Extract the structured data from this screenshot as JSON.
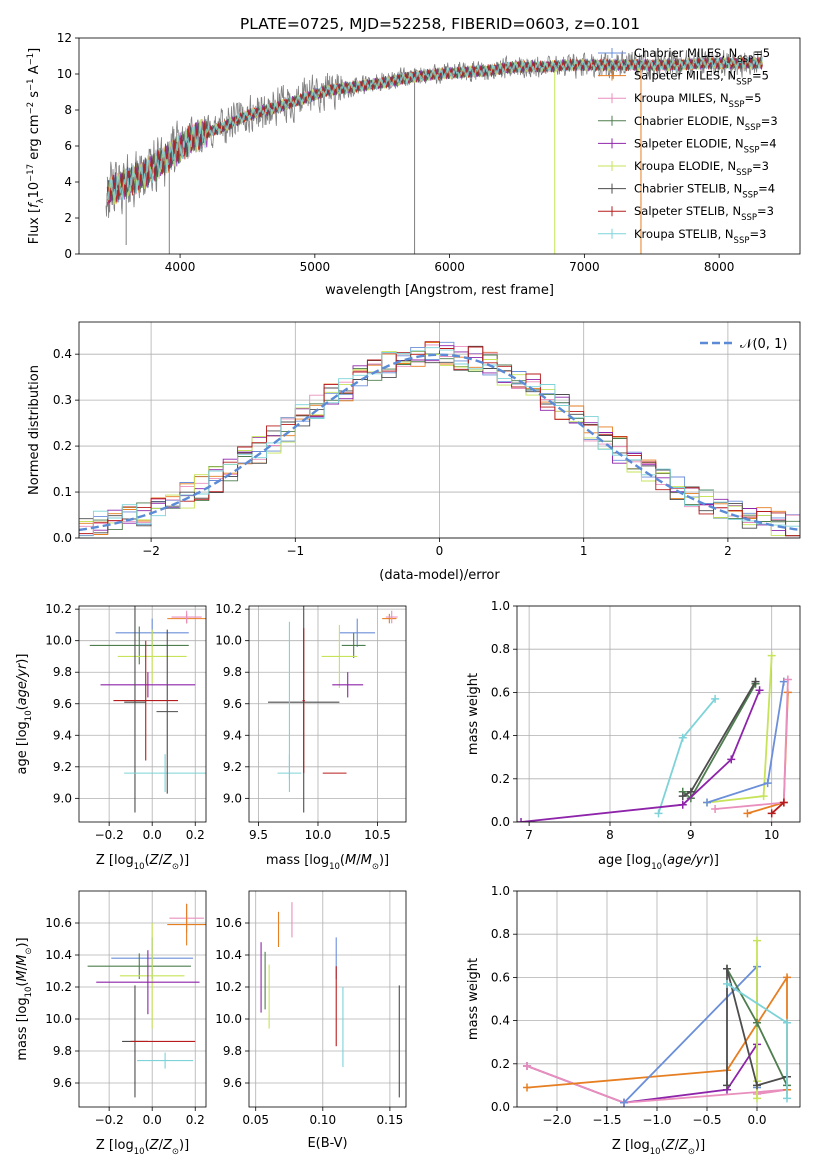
{
  "figure": {
    "title": "PLATE=0725, MJD=52258, FIBERID=0603, z=0.101"
  },
  "colors": {
    "Chabrier MILES": "#6b8fd9",
    "Salpeter MILES": "#e67e22",
    "Kroupa MILES": "#e98fbd",
    "Chabrier ELODIE": "#4e7d4e",
    "Salpeter ELODIE": "#8e24aa",
    "Kroupa ELODIE": "#c6e35a",
    "Chabrier STELIB": "#4d4d4d",
    "Salpeter STELIB": "#b71c1c",
    "Kroupa STELIB": "#7dd3d8",
    "data": "#808080",
    "gaussian": "#5b8bd6",
    "grid": "#b0b0b0"
  },
  "chart_data": [
    {
      "type": "line",
      "id": "spectrum",
      "xlabel": "wavelength [Angstrom, rest frame]",
      "ylabel": "Flux [f_λ 10^-17 erg cm^-2 s^-1 A^-1]",
      "xlim": [
        3250,
        8600
      ],
      "ylim": [
        0,
        12
      ],
      "xticks": [
        4000,
        5000,
        6000,
        7000,
        8000
      ],
      "yticks": [
        0,
        2,
        4,
        6,
        8,
        10,
        12
      ],
      "grid": false,
      "legend_position": "right",
      "legend": [
        "Chabrier MILES, N_SSP=5",
        "Salpeter MILES, N_SSP=5",
        "Kroupa MILES, N_SSP=5",
        "Chabrier ELODIE, N_SSP=3",
        "Salpeter ELODIE, N_SSP=4",
        "Kroupa ELODIE, N_SSP=3",
        "Chabrier STELIB, N_SSP=4",
        "Salpeter STELIB, N_SSP=3",
        "Kroupa STELIB, N_SSP=3"
      ],
      "continuum": {
        "x": [
          3450,
          3700,
          3900,
          4100,
          4300,
          4500,
          4700,
          4900,
          5100,
          5300,
          5500,
          5700,
          5900,
          6100,
          6300,
          6500,
          6700,
          6900,
          7100,
          7300,
          7500,
          7700,
          7900,
          8100,
          8300
        ],
        "y": [
          3.4,
          4.3,
          5.3,
          6.5,
          7.0,
          7.7,
          8.1,
          8.6,
          9.1,
          9.3,
          9.5,
          9.8,
          10.0,
          10.1,
          10.2,
          10.4,
          10.4,
          10.5,
          10.5,
          10.5,
          10.5,
          10.5,
          10.6,
          10.6,
          10.6
        ]
      }
    },
    {
      "type": "histogram",
      "id": "residuals",
      "xlabel": "(data-model)/error",
      "ylabel": "Normed distribution",
      "xlim": [
        -2.5,
        2.5
      ],
      "ylim": [
        0,
        0.47
      ],
      "xticks": [
        -2,
        -1,
        0,
        1,
        2
      ],
      "yticks": [
        0.0,
        0.1,
        0.2,
        0.3,
        0.4
      ],
      "grid": true,
      "legend_position": "top-right",
      "legend": [
        "N(0,1)"
      ],
      "bin_width": 0.1
    },
    {
      "type": "scatter",
      "id": "age_vs_Z",
      "xlabel": "Z [log10(Z/Z_sun)]",
      "ylabel": "age [log10(age/yr)]",
      "xlim": [
        -0.34,
        0.25
      ],
      "ylim": [
        8.85,
        10.22
      ],
      "xticks": [
        -0.2,
        0.0,
        0.2
      ],
      "yticks": [
        9.0,
        9.2,
        9.4,
        9.6,
        9.8,
        10.0,
        10.2
      ],
      "grid": true,
      "points": [
        {
          "model": "Salpeter MILES",
          "x": 0.16,
          "y": 10.14,
          "xerr": 0.09,
          "yerr": 0.03
        },
        {
          "model": "Kroupa MILES",
          "x": 0.16,
          "y": 10.15,
          "xerr": 0.07,
          "yerr": 0.04
        },
        {
          "model": "Chabrier MILES",
          "x": 0.0,
          "y": 10.05,
          "xerr": 0.17,
          "yerr": 0.09
        },
        {
          "model": "Chabrier ELODIE",
          "x": -0.06,
          "y": 9.97,
          "xerr": 0.23,
          "yerr": 0.12
        },
        {
          "model": "Kroupa ELODIE",
          "x": 0.0,
          "y": 9.9,
          "xerr": 0.16,
          "yerr": 0.17
        },
        {
          "model": "Salpeter ELODIE",
          "x": -0.02,
          "y": 9.72,
          "xerr": 0.22,
          "yerr": 0.08
        },
        {
          "model": "Chabrier STELIB",
          "x": -0.08,
          "y": 9.61,
          "xerr": 0.05,
          "yerr": 0.7
        },
        {
          "model": "Salpeter STELIB",
          "x": -0.03,
          "y": 9.62,
          "xerr": 0.15,
          "yerr": 0.38
        },
        {
          "model": "Kroupa STELIB",
          "x": 0.06,
          "y": 9.16,
          "xerr": 0.19,
          "yerr": 0.12
        },
        {
          "model": "Chabrier STELIB",
          "x": 0.07,
          "y": 9.55,
          "xerr": 0.05,
          "yerr": 0.52
        }
      ]
    },
    {
      "type": "scatter",
      "id": "age_vs_mass",
      "xlabel": "mass [log10(M/M_sun)]",
      "ylabel": "",
      "xlim": [
        9.42,
        10.74
      ],
      "ylim": [
        8.85,
        10.22
      ],
      "xticks": [
        9.5,
        10.0,
        10.5
      ],
      "yticks": [
        9.0,
        9.2,
        9.4,
        9.6,
        9.8,
        10.0,
        10.2
      ],
      "grid": true,
      "points": [
        {
          "model": "Salpeter MILES",
          "x": 10.6,
          "y": 10.14,
          "xerr": 0.06,
          "yerr": 0.03
        },
        {
          "model": "Kroupa MILES",
          "x": 10.62,
          "y": 10.15,
          "xerr": 0.05,
          "yerr": 0.04
        },
        {
          "model": "Chabrier MILES",
          "x": 10.33,
          "y": 10.05,
          "xerr": 0.15,
          "yerr": 0.09
        },
        {
          "model": "Chabrier ELODIE",
          "x": 10.3,
          "y": 9.97,
          "xerr": 0.1,
          "yerr": 0.08
        },
        {
          "model": "Kroupa ELODIE",
          "x": 10.18,
          "y": 9.9,
          "xerr": 0.15,
          "yerr": 0.2
        },
        {
          "model": "Salpeter ELODIE",
          "x": 10.25,
          "y": 9.72,
          "xerr": 0.13,
          "yerr": 0.08
        },
        {
          "model": "Chabrier STELIB",
          "x": 9.88,
          "y": 9.61,
          "xerr": 0.3,
          "yerr": 0.7
        },
        {
          "model": "Salpeter STELIB",
          "x": 9.88,
          "y": 9.62,
          "xerr": 0.01,
          "yerr": 0.46
        },
        {
          "model": "Kroupa STELIB",
          "x": 9.76,
          "y": 9.16,
          "xerr": 0.1,
          "yerr": 0.12
        },
        {
          "model": "Salpeter STELIB",
          "x": 10.14,
          "y": 9.16,
          "xerr": 0.1,
          "yerr": 0.0
        },
        {
          "model": "Kroupa STELIB",
          "x": 9.76,
          "y": 9.62,
          "xerr": 0.0,
          "yerr": 0.5
        }
      ]
    },
    {
      "type": "line",
      "id": "mass_weight_vs_age",
      "xlabel": "age [log10(age/yr)]",
      "ylabel": "mass weight",
      "xlim": [
        6.85,
        10.35
      ],
      "ylim": [
        0,
        1
      ],
      "xticks": [
        7,
        8,
        9,
        10
      ],
      "yticks": [
        0.0,
        0.2,
        0.4,
        0.6,
        0.8,
        1.0
      ],
      "grid": true,
      "series": [
        {
          "model": "Kroupa STELIB",
          "x": [
            8.6,
            8.9,
            9.3
          ],
          "y": [
            0.04,
            0.39,
            0.57
          ]
        },
        {
          "model": "Chabrier ELODIE",
          "x": [
            8.9,
            9.0,
            9.8
          ],
          "y": [
            0.14,
            0.11,
            0.64
          ]
        },
        {
          "model": "Chabrier STELIB",
          "x": [
            8.9,
            9.0,
            9.8
          ],
          "y": [
            0.12,
            0.14,
            0.65
          ]
        },
        {
          "model": "Salpeter ELODIE",
          "x": [
            6.9,
            8.9,
            9.5,
            9.85
          ],
          "y": [
            0.0,
            0.08,
            0.29,
            0.61
          ]
        },
        {
          "model": "Kroupa ELODIE",
          "x": [
            9.2,
            9.9,
            10.0
          ],
          "y": [
            0.09,
            0.12,
            0.77
          ]
        },
        {
          "model": "Chabrier MILES",
          "x": [
            9.2,
            9.95,
            10.15
          ],
          "y": [
            0.09,
            0.18,
            0.65
          ]
        },
        {
          "model": "Salpeter MILES",
          "x": [
            9.7,
            10.15,
            10.2
          ],
          "y": [
            0.04,
            0.09,
            0.6
          ]
        },
        {
          "model": "Kroupa MILES",
          "x": [
            9.3,
            10.15,
            10.2
          ],
          "y": [
            0.06,
            0.09,
            0.66
          ]
        },
        {
          "model": "Salpeter STELIB",
          "x": [
            10.0,
            10.15
          ],
          "y": [
            0.04,
            0.09
          ]
        }
      ]
    },
    {
      "type": "scatter",
      "id": "mass_vs_Z",
      "xlabel": "Z [log10(Z/Z_sun)]",
      "ylabel": "mass [log10(M/M_sun)]",
      "xlim": [
        -0.34,
        0.25
      ],
      "ylim": [
        9.45,
        10.8
      ],
      "xticks": [
        -0.2,
        0.0,
        0.2
      ],
      "yticks": [
        9.6,
        9.8,
        10.0,
        10.2,
        10.4,
        10.6
      ],
      "grid": true,
      "points": [
        {
          "model": "Kroupa MILES",
          "x": 0.16,
          "y": 10.63,
          "xerr": 0.08,
          "yerr": 0.09
        },
        {
          "model": "Salpeter MILES",
          "x": 0.16,
          "y": 10.59,
          "xerr": 0.09,
          "yerr": 0.13
        },
        {
          "model": "Chabrier MILES",
          "x": 0.0,
          "y": 10.38,
          "xerr": 0.19,
          "yerr": 0.13
        },
        {
          "model": "Chabrier ELODIE",
          "x": -0.06,
          "y": 10.33,
          "xerr": 0.24,
          "yerr": 0.08
        },
        {
          "model": "Kroupa ELODIE",
          "x": 0.0,
          "y": 10.27,
          "xerr": 0.15,
          "yerr": 0.33
        },
        {
          "model": "Salpeter ELODIE",
          "x": -0.02,
          "y": 10.23,
          "xerr": 0.24,
          "yerr": 0.2
        },
        {
          "model": "Chabrier STELIB",
          "x": -0.08,
          "y": 9.86,
          "xerr": 0.06,
          "yerr": 0.35
        },
        {
          "model": "Salpeter STELIB",
          "x": 0.05,
          "y": 9.86,
          "xerr": 0.15,
          "yerr": 0.0
        },
        {
          "model": "Kroupa STELIB",
          "x": 0.06,
          "y": 9.74,
          "xerr": 0.13,
          "yerr": 0.05
        }
      ]
    },
    {
      "type": "scatter",
      "id": "mass_vs_EBV",
      "xlabel": "E(B-V)",
      "ylabel": "",
      "xlim": [
        0.045,
        0.162
      ],
      "ylim": [
        9.45,
        10.8
      ],
      "xticks": [
        0.05,
        0.1,
        0.15
      ],
      "yticks": [
        9.6,
        9.8,
        10.0,
        10.2,
        10.4,
        10.6
      ],
      "grid": true,
      "points": [
        {
          "model": "Kroupa MILES",
          "x": 0.077,
          "y": 10.62,
          "yerr": 0.11
        },
        {
          "model": "Salpeter MILES",
          "x": 0.067,
          "y": 10.56,
          "yerr": 0.11
        },
        {
          "model": "Chabrier MILES",
          "x": 0.11,
          "y": 10.38,
          "yerr": 0.13
        },
        {
          "model": "Salpeter ELODIE",
          "x": 0.054,
          "y": 10.26,
          "yerr": 0.22
        },
        {
          "model": "Chabrier ELODIE",
          "x": 0.057,
          "y": 10.24,
          "yerr": 0.18
        },
        {
          "model": "Kroupa ELODIE",
          "x": 0.06,
          "y": 10.14,
          "yerr": 0.2
        },
        {
          "model": "Salpeter STELIB",
          "x": 0.11,
          "y": 10.08,
          "yerr": 0.25
        },
        {
          "model": "Kroupa STELIB",
          "x": 0.115,
          "y": 9.95,
          "yerr": 0.25
        },
        {
          "model": "Chabrier STELIB",
          "x": 0.157,
          "y": 9.86,
          "yerr": 0.35
        }
      ]
    },
    {
      "type": "line",
      "id": "mass_weight_vs_Z",
      "xlabel": "Z [log10(Z/Z_sun)]",
      "ylabel": "mass weight",
      "xlim": [
        -2.4,
        0.43
      ],
      "ylim": [
        0,
        1
      ],
      "xticks": [
        -2.0,
        -1.5,
        -1.0,
        -0.5,
        0.0
      ],
      "yticks": [
        0.0,
        0.2,
        0.4,
        0.6,
        0.8,
        1.0
      ],
      "grid": true,
      "series": [
        {
          "model": "Salpeter ELODIE",
          "x": [
            -2.3,
            -1.33,
            -0.3,
            0.0
          ],
          "y": [
            0.19,
            0.02,
            0.08,
            0.29
          ]
        },
        {
          "model": "Kroupa MILES",
          "x": [
            -2.3,
            -1.33,
            0.3,
            0.0
          ],
          "y": [
            0.19,
            0.02,
            0.08,
            0.06
          ]
        },
        {
          "model": "Salpeter MILES",
          "x": [
            -2.3,
            -0.3,
            0.3,
            0.3
          ],
          "y": [
            0.09,
            0.17,
            0.6,
            0.08
          ]
        },
        {
          "model": "Chabrier MILES",
          "x": [
            -1.33,
            0.0,
            0.0
          ],
          "y": [
            0.02,
            0.65,
            0.09
          ]
        },
        {
          "model": "Kroupa ELODIE",
          "x": [
            0.0,
            0.0,
            0.0
          ],
          "y": [
            0.04,
            0.77,
            0.12
          ]
        },
        {
          "model": "Chabrier ELODIE",
          "x": [
            -0.3,
            0.0,
            0.3
          ],
          "y": [
            0.64,
            0.39,
            0.1
          ]
        },
        {
          "model": "Chabrier STELIB",
          "x": [
            -0.3,
            -0.3,
            0.0,
            0.3
          ],
          "y": [
            0.1,
            0.64,
            0.1,
            0.14
          ]
        },
        {
          "model": "Kroupa STELIB",
          "x": [
            -0.3,
            0.3,
            0.3
          ],
          "y": [
            0.57,
            0.39,
            0.04
          ]
        }
      ]
    }
  ]
}
